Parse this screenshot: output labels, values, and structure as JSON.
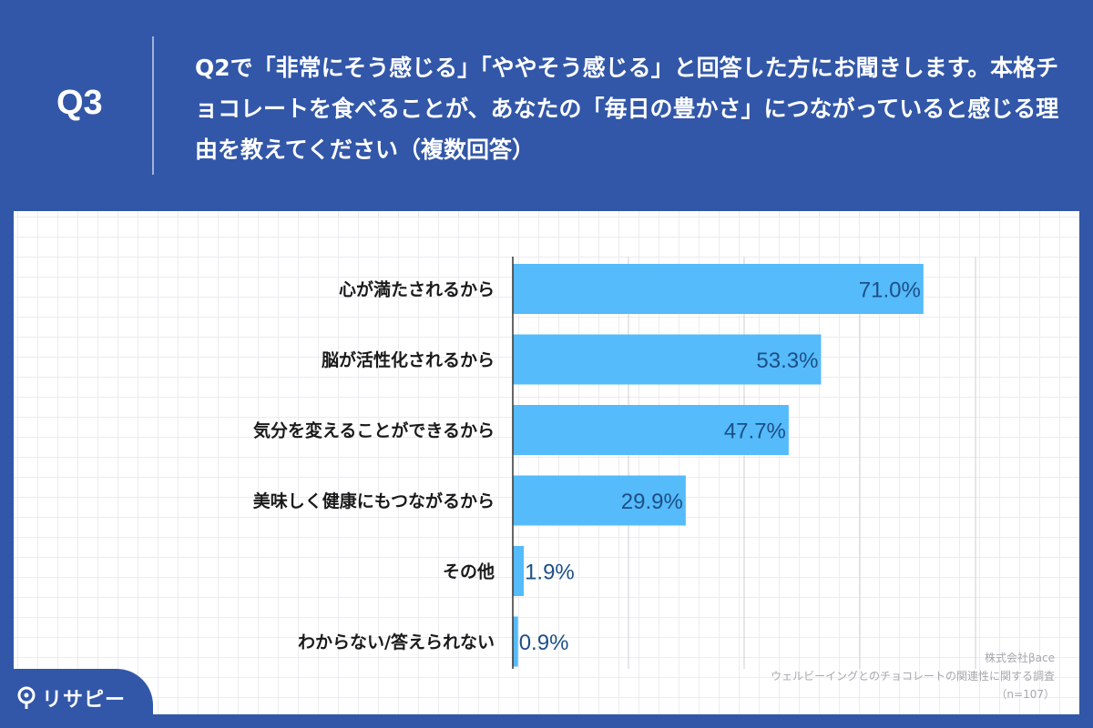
{
  "header": {
    "question_number": "Q3",
    "question_text": "Q2で「非常にそう感じる」「ややそう感じる」と回答した方にお聞きします。本格チョコレートを食べることが、あなたの「毎日の豊かさ」につながっていると感じる理由を教えてください（複数回答）"
  },
  "chart_data": {
    "type": "bar",
    "orientation": "horizontal",
    "categories": [
      "心が満たされるから",
      "脳が活性化されるから",
      "気分を変えることができるから",
      "美味しく健康にもつながるから",
      "その他",
      "わからない/答えられない"
    ],
    "values": [
      71.0,
      53.3,
      47.7,
      29.9,
      1.9,
      0.9
    ],
    "value_labels": [
      "71.0%",
      "53.3%",
      "47.7%",
      "29.9%",
      "1.9%",
      "0.9%"
    ],
    "xlim": [
      0,
      80
    ],
    "grid": true,
    "bar_color": "#55bbfa",
    "value_label_color": "#1d4f86"
  },
  "source": {
    "company": "株式会社βace",
    "survey": "ウェルビーイングとのチョコレートの関連性に関する調査",
    "sample": "（n=107）"
  },
  "brand": {
    "name": "リサピー",
    "icon": "pin-icon"
  }
}
